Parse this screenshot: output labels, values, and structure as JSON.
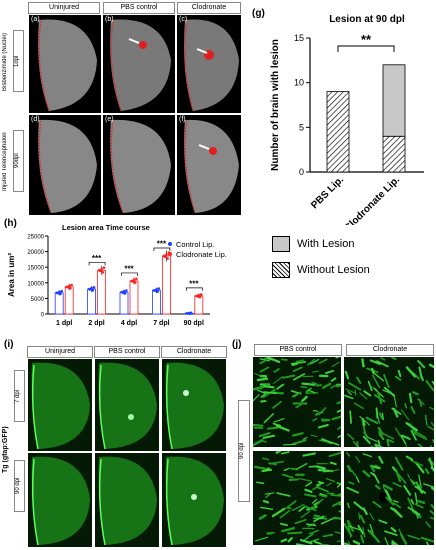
{
  "panels_top": {
    "col_labels": [
      "Uninjured",
      "PBS control",
      "Clodronate"
    ],
    "row_group_label": "Bisbenzimide (Nuclei)",
    "row_group_label2": "Injured Telencephalon",
    "row_labels": [
      "1dpl",
      "90dpl"
    ],
    "sub_labels": [
      "(a)",
      "(b)",
      "(c)",
      "(d)",
      "(e)",
      "(f)"
    ]
  },
  "panel_g": {
    "label": "(g)",
    "chart_data": {
      "type": "bar",
      "title": "Lesion at 90 dpl",
      "ylabel": "Number of brain with lesion",
      "categories": [
        "PBS Lip.",
        "Clodronate Lip."
      ],
      "series": [
        {
          "name": "Without Lesion",
          "values": [
            9,
            4
          ]
        },
        {
          "name": "With Lesion",
          "values": [
            0,
            8
          ]
        }
      ],
      "ylim": [
        0,
        15
      ],
      "yticks": [
        "0",
        "5",
        "10",
        "15"
      ],
      "significance": "**"
    }
  },
  "legend_g": {
    "with": "With Lesion",
    "without": "Without Lesion",
    "with_color": "#c8c8c8"
  },
  "panel_h": {
    "label": "(h)",
    "chart_data": {
      "type": "bar",
      "title": "Lesion area Time course",
      "ylabel": "Area in um²",
      "categories": [
        "1 dpl",
        "2 dpl",
        "4 dpl",
        "7 dpl",
        "90 dpl"
      ],
      "series": [
        {
          "name": "Control Lip.",
          "color": "#1f3fff",
          "values": [
            6800,
            8000,
            7000,
            7600,
            200
          ]
        },
        {
          "name": "Clodronate Lip.",
          "color": "#ff2020",
          "values": [
            8700,
            14000,
            10600,
            18600,
            5800
          ]
        }
      ],
      "ylim": [
        0,
        25000
      ],
      "yticks": [
        "0",
        "5000",
        "10000",
        "15000",
        "20000",
        "25000"
      ],
      "significance": [
        "***",
        "***",
        "***",
        "***"
      ]
    }
  },
  "panel_i": {
    "label": "(i)",
    "col_labels": [
      "Uninjured",
      "PBS control",
      "Clodronate"
    ],
    "row_labels": [
      "7 dpl",
      "90 dpl"
    ],
    "side_label": "Tg (gfap:GFP)"
  },
  "panel_j": {
    "label": "(j)",
    "col_labels": [
      "PBS control",
      "Clodronate"
    ],
    "row_label": "90 dpl"
  }
}
